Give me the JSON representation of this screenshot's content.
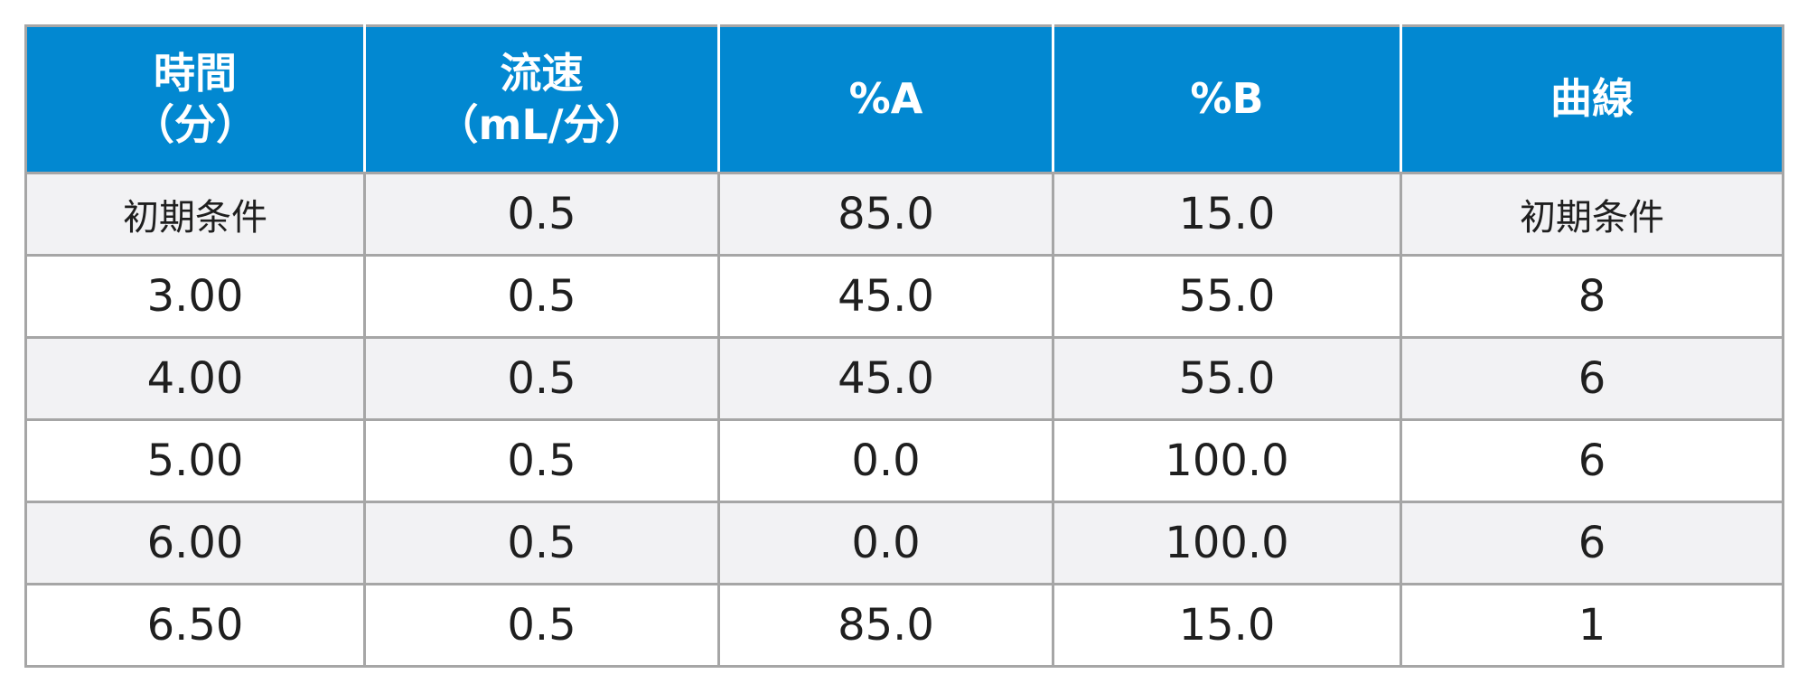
{
  "colors": {
    "header_bg": "#0288d1",
    "header_text": "#ffffff",
    "row_alt_bg": "#f2f2f4",
    "row_bg": "#ffffff",
    "border": "#a6a6a6",
    "text": "#1f1f1f"
  },
  "table": {
    "headers": [
      [
        "時間",
        "（分）"
      ],
      [
        "流速",
        "（mL/分）"
      ],
      [
        "%A"
      ],
      [
        "%B"
      ],
      [
        "曲線"
      ]
    ],
    "rows": [
      [
        "初期条件",
        "0.5",
        "85.0",
        "15.0",
        "初期条件"
      ],
      [
        "3.00",
        "0.5",
        "45.0",
        "55.0",
        "8"
      ],
      [
        "4.00",
        "0.5",
        "45.0",
        "55.0",
        "6"
      ],
      [
        "5.00",
        "0.5",
        "0.0",
        "100.0",
        "6"
      ],
      [
        "6.00",
        "0.5",
        "0.0",
        "100.0",
        "6"
      ],
      [
        "6.50",
        "0.5",
        "85.0",
        "15.0",
        "1"
      ]
    ]
  }
}
